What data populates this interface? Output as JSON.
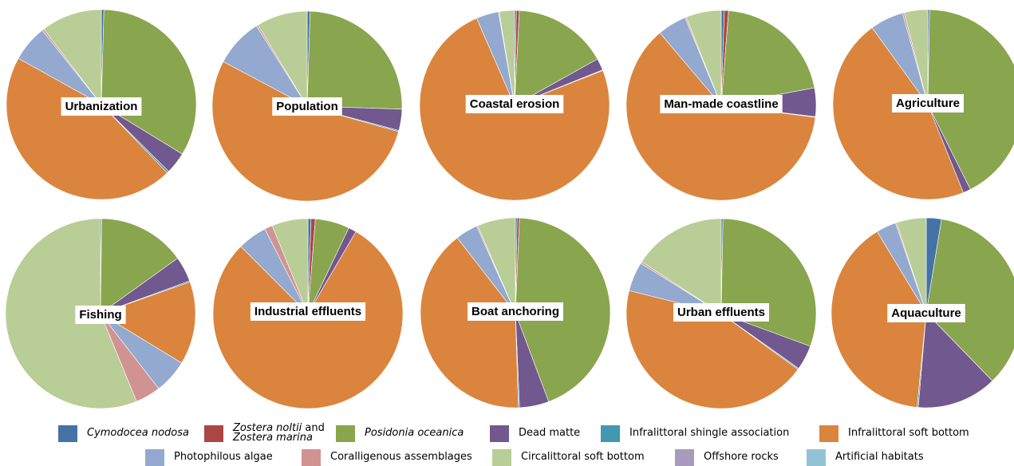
{
  "chart_data": [
    {
      "type": "pie",
      "label": "Urbanization",
      "values": [
        0.4,
        0,
        30.5,
        3.4,
        0.3,
        41.5,
        5.7,
        0.3,
        9.5,
        0,
        0
      ]
    },
    {
      "type": "pie",
      "label": "Population",
      "values": [
        0.5,
        0,
        24.8,
        3.6,
        0.2,
        53.0,
        8.2,
        0.3,
        8.6,
        0,
        0
      ]
    },
    {
      "type": "pie",
      "label": "Coastal erosion",
      "values": [
        0.3,
        0.5,
        16.0,
        2.0,
        0.1,
        74.0,
        3.8,
        0.1,
        2.6,
        0,
        0
      ]
    },
    {
      "type": "pie",
      "label": "Man-made coastline",
      "values": [
        0.5,
        0.7,
        20.1,
        4.7,
        0.1,
        59.7,
        4.8,
        0.2,
        5.8,
        0,
        0
      ]
    },
    {
      "type": "pie",
      "label": "Agriculture",
      "values": [
        0.3,
        0,
        42.3,
        1.3,
        0,
        46.1,
        5.7,
        0.3,
        4.0,
        0,
        0
      ]
    },
    {
      "type": "pie",
      "label": "Fishing",
      "values": [
        0.2,
        0,
        14.9,
        4.3,
        0.2,
        14.1,
        5.8,
        4.3,
        56.2,
        0,
        0
      ]
    },
    {
      "type": "pie",
      "label": "Industrial effluents",
      "values": [
        0.5,
        0.7,
        5.6,
        1.3,
        0,
        75.9,
        4.8,
        1.3,
        5.9,
        0,
        0
      ]
    },
    {
      "type": "pie",
      "label": "Boat anchoring",
      "values": [
        0.3,
        0.4,
        43.6,
        5.0,
        0.2,
        40.0,
        3.8,
        0.2,
        6.5,
        0,
        0
      ]
    },
    {
      "type": "pie",
      "label": "Urban effluents",
      "values": [
        0.3,
        0,
        30.3,
        4.2,
        0.2,
        43.9,
        5.0,
        0.3,
        15.8,
        0,
        0
      ]
    },
    {
      "type": "pie",
      "label": "Aquaculture",
      "values": [
        2.5,
        0,
        34.1,
        13.2,
        0.2,
        38.6,
        3.3,
        0.2,
        4.9,
        0,
        0
      ]
    }
  ],
  "legend": [
    {
      "name": "Cymodocea nodosa",
      "color": "#4572A7"
    },
    {
      "name_a": "Zostera noltii",
      "name_b": " and",
      "name_c": "Zostera marina",
      "color": "#AA4643"
    },
    {
      "name": "Posidonia oceanica",
      "color": "#89A54E"
    },
    {
      "name": "Dead matte",
      "color": "#71588F"
    },
    {
      "name": "Infralittoral shingle association",
      "color": "#4198AF"
    },
    {
      "name": "Infralittoral soft bottom",
      "color": "#DB843D"
    },
    {
      "name": "Photophilous algae",
      "color": "#93A9CF"
    },
    {
      "name": "Coralligenous assemblages",
      "color": "#D19392"
    },
    {
      "name": "Circalittoral soft bottom",
      "color": "#B9CD96"
    },
    {
      "name": "Offshore rocks",
      "color": "#A99BBD"
    },
    {
      "name": "Artificial habitats",
      "color": "#92C3D5"
    }
  ]
}
